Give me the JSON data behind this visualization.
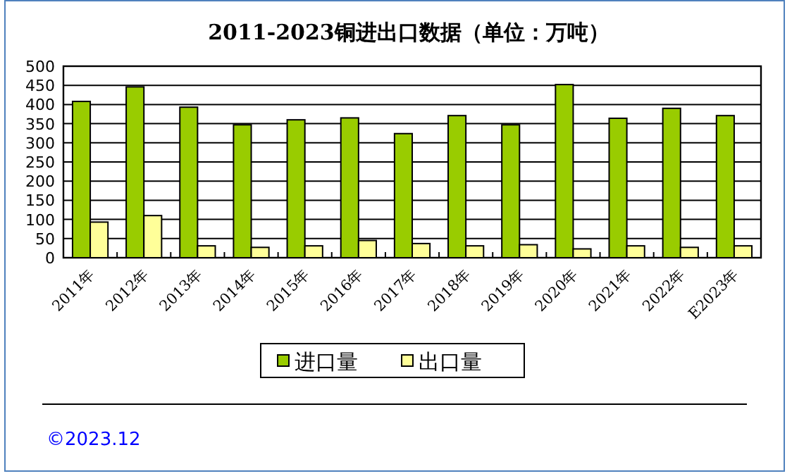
{
  "chart_data": {
    "type": "bar",
    "title": "2011-2023铜进出口数据（单位：万吨）",
    "categories": [
      "2011年",
      "2012年",
      "2013年",
      "2014年",
      "2015年",
      "2016年",
      "2017年",
      "2018年",
      "2019年",
      "2020年",
      "2021年",
      "2022年",
      "E2023年"
    ],
    "series": [
      {
        "name": "进口量",
        "color": "#99cc00",
        "values": [
          408,
          446,
          393,
          347,
          360,
          365,
          324,
          371,
          347,
          452,
          364,
          390,
          371
        ]
      },
      {
        "name": "出口量",
        "color": "#ffff99",
        "values": [
          93,
          110,
          31,
          27,
          31,
          45,
          37,
          31,
          34,
          23,
          31,
          27,
          31
        ]
      }
    ],
    "ylim": [
      0,
      500
    ],
    "yticks": [
      0,
      50,
      100,
      150,
      200,
      250,
      300,
      350,
      400,
      450,
      500
    ],
    "grid": "y",
    "legend": "bottom",
    "annotations": [
      "©2023.12"
    ]
  }
}
